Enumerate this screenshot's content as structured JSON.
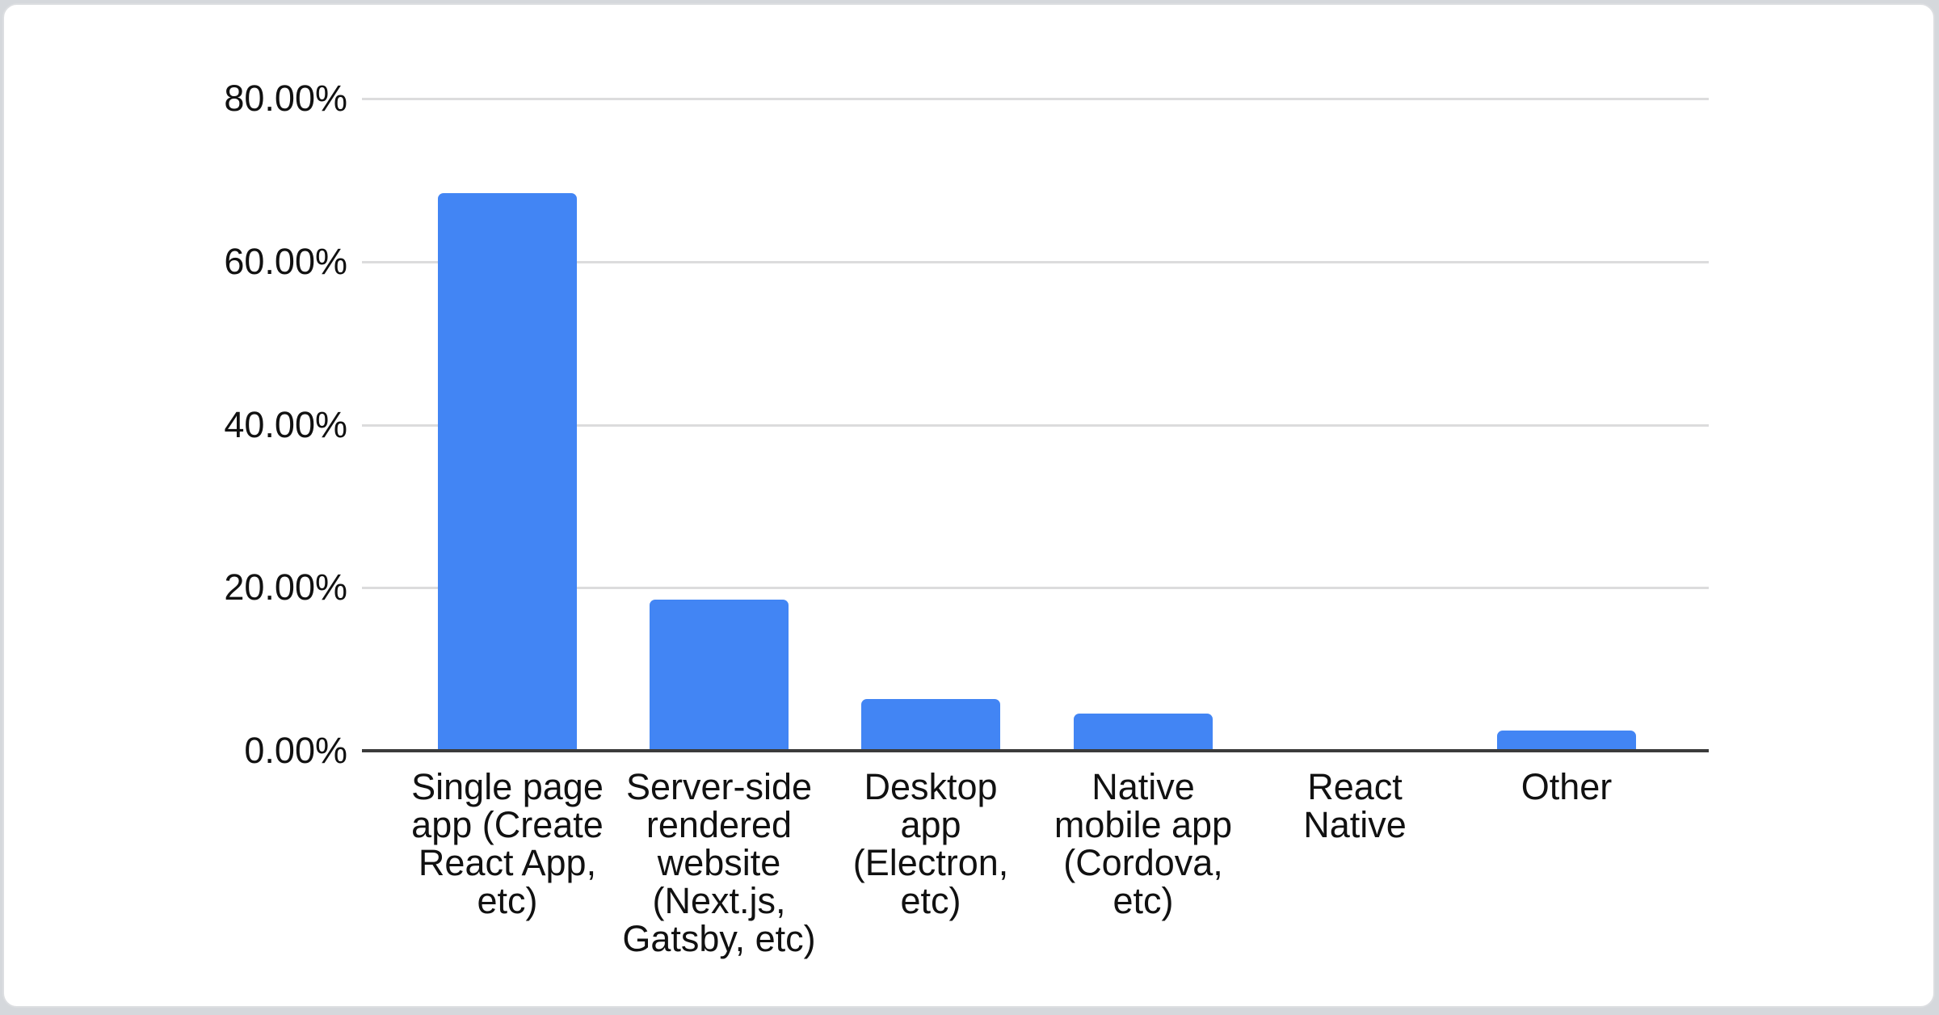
{
  "page": {
    "background_color": "#d5d8dc",
    "card_color": "#ffffff",
    "card_border_color": "#dcdee1"
  },
  "chart_data": {
    "type": "bar",
    "title": "",
    "legend": "none",
    "grid": true,
    "unit": "%",
    "categories": [
      "Single page app (Create React App, etc)",
      "Server-side rendered website (Next.js, Gatsby, etc)",
      "Desktop app (Electron, etc)",
      "Native mobile app (Cordova, etc)",
      "React Native",
      "Other"
    ],
    "category_lines": [
      [
        "Single page",
        "app (Create",
        "React App,",
        "etc)"
      ],
      [
        "Server-side",
        "rendered",
        "website",
        "(Next.js,",
        "Gatsby, etc)"
      ],
      [
        "Desktop",
        "app",
        "(Electron,",
        "etc)"
      ],
      [
        "Native",
        "mobile app",
        "(Cordova,",
        "etc)"
      ],
      [
        "React",
        "Native"
      ],
      [
        "Other"
      ]
    ],
    "values": [
      68.4,
      18.5,
      6.3,
      4.6,
      0,
      2.5
    ],
    "xlabel": "",
    "ylabel": "",
    "ylim": [
      0,
      80
    ],
    "y_axis": {
      "ticks": [
        {
          "label": "80.00%",
          "value": 80
        },
        {
          "label": "60.00%",
          "value": 60
        },
        {
          "label": "40.00%",
          "value": 40
        },
        {
          "label": "20.00%",
          "value": 20
        },
        {
          "label": "0.00%",
          "value": 0
        }
      ]
    },
    "bar_color": "#4285f4",
    "axis_line_color": "#3b3b3b",
    "gridline_color": "#dcdcdd",
    "text_color": "#111111"
  }
}
